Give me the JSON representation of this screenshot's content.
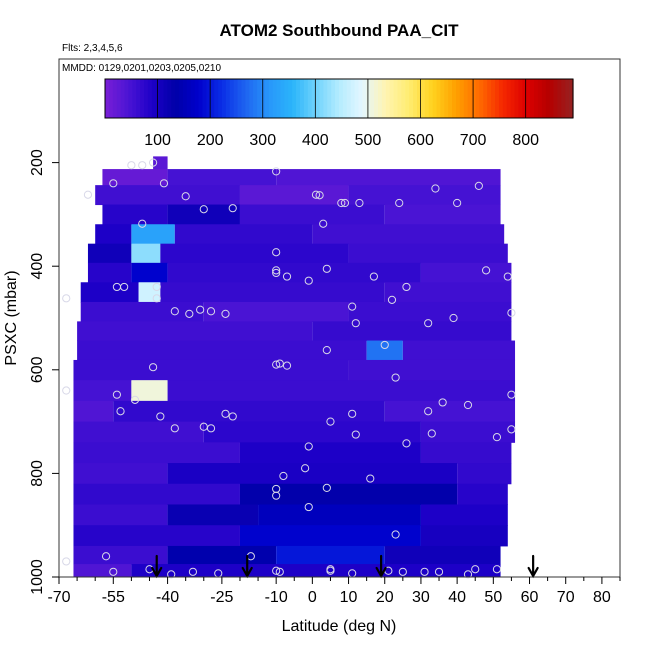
{
  "chart_data": {
    "type": "heatmap",
    "title": "ATOM2 Southbound PAA_CIT",
    "subtitle_flights": "Flts: 2,3,4,5,6",
    "subtitle_dates": "MMDD: 0129,0201,0203,0205,0210",
    "xlabel": "Latitude (deg N)",
    "ylabel": "PSXC (mbar)",
    "xlim": [
      -70,
      85
    ],
    "ylim": [
      1000,
      0
    ],
    "x_major_ticks": [
      -70,
      -55,
      -40,
      -25,
      -10,
      0,
      10,
      20,
      30,
      40,
      50,
      60,
      70,
      80
    ],
    "x_tick_labels": [
      "-70",
      "-55",
      "-40",
      "-25",
      "-10",
      "0",
      "10",
      "20",
      "30",
      "40",
      "50",
      "60",
      "70",
      "80"
    ],
    "x_minor_ticks": [
      -65,
      -60,
      -50,
      -45,
      -35,
      -30,
      -20,
      -15,
      -5,
      5,
      15,
      25,
      35,
      45,
      55,
      65,
      75,
      85
    ],
    "y_ticks": [
      200,
      400,
      600,
      800,
      1000
    ],
    "y_tick_labels": [
      "200",
      "400",
      "600",
      "800",
      "1000"
    ],
    "colorbar": {
      "min": 0,
      "max": 890,
      "ticks": [
        100,
        200,
        300,
        400,
        500,
        600,
        700,
        800
      ],
      "tick_labels": [
        "100",
        "200",
        "300",
        "400",
        "500",
        "600",
        "700",
        "800"
      ],
      "colors": [
        "#7a1fd6",
        "#4b14d4",
        "#1e00c8",
        "#0000a8",
        "#0000cc",
        "#0a2ee6",
        "#1e64f0",
        "#2896fa",
        "#2ab4fa",
        "#6fd2fc",
        "#b4ecfe",
        "#e4f6ff",
        "#fff4b0",
        "#ffec70",
        "#ffd21e",
        "#ffa000",
        "#ff6a00",
        "#f52800",
        "#dc0000",
        "#b40000",
        "#962222"
      ]
    },
    "arrows_latitude": [
      -43,
      -18,
      19,
      61
    ],
    "rows": [
      {
        "p": 200,
        "segments": [
          {
            "x0": -44,
            "x1": -40,
            "v": 30
          }
        ]
      },
      {
        "p": 225,
        "segments": [
          {
            "x0": -58,
            "x1": -40,
            "v": 20
          },
          {
            "x0": -40,
            "x1": -10,
            "v": 50
          },
          {
            "x0": -10,
            "x1": 52,
            "v": 40
          }
        ]
      },
      {
        "p": 262,
        "segments": [
          {
            "x0": -60,
            "x1": -20,
            "v": 55
          },
          {
            "x0": -20,
            "x1": 10,
            "v": 30
          },
          {
            "x0": 10,
            "x1": 52,
            "v": 50
          }
        ]
      },
      {
        "p": 300,
        "segments": [
          {
            "x0": -58,
            "x1": -40,
            "v": 80
          },
          {
            "x0": -40,
            "x1": -20,
            "v": 110
          },
          {
            "x0": -20,
            "x1": 20,
            "v": 60
          },
          {
            "x0": 20,
            "x1": 52,
            "v": 45
          }
        ]
      },
      {
        "p": 338,
        "segments": [
          {
            "x0": -60,
            "x1": -50,
            "v": 90
          },
          {
            "x0": -50,
            "x1": -38,
            "v": 330
          },
          {
            "x0": -38,
            "x1": 0,
            "v": 70
          },
          {
            "x0": 0,
            "x1": 53,
            "v": 55
          }
        ]
      },
      {
        "p": 375,
        "segments": [
          {
            "x0": -62,
            "x1": -50,
            "v": 110
          },
          {
            "x0": -50,
            "x1": -42,
            "v": 420
          },
          {
            "x0": -42,
            "x1": 10,
            "v": 75
          },
          {
            "x0": 10,
            "x1": 54,
            "v": 60
          }
        ]
      },
      {
        "p": 412,
        "segments": [
          {
            "x0": -62,
            "x1": -50,
            "v": 80
          },
          {
            "x0": -50,
            "x1": -40,
            "v": 180
          },
          {
            "x0": -40,
            "x1": 30,
            "v": 70
          },
          {
            "x0": 30,
            "x1": 55,
            "v": 50
          }
        ]
      },
      {
        "p": 450,
        "segments": [
          {
            "x0": -64,
            "x1": -48,
            "v": 90
          },
          {
            "x0": -48,
            "x1": -42,
            "v": 470
          },
          {
            "x0": -42,
            "x1": 20,
            "v": 65
          },
          {
            "x0": 20,
            "x1": 55,
            "v": 55
          }
        ]
      },
      {
        "p": 488,
        "segments": [
          {
            "x0": -64,
            "x1": -30,
            "v": 60
          },
          {
            "x0": -30,
            "x1": 10,
            "v": 45
          },
          {
            "x0": 10,
            "x1": 55,
            "v": 60
          }
        ]
      },
      {
        "p": 525,
        "segments": [
          {
            "x0": -65,
            "x1": 0,
            "v": 55
          },
          {
            "x0": 0,
            "x1": 55,
            "v": 65
          }
        ]
      },
      {
        "p": 562,
        "segments": [
          {
            "x0": -65,
            "x1": 15,
            "v": 60
          },
          {
            "x0": 15,
            "x1": 25,
            "v": 280
          },
          {
            "x0": 25,
            "x1": 56,
            "v": 55
          }
        ]
      },
      {
        "p": 600,
        "segments": [
          {
            "x0": -66,
            "x1": 10,
            "v": 60
          },
          {
            "x0": 10,
            "x1": 56,
            "v": 55
          }
        ]
      },
      {
        "p": 640,
        "segments": [
          {
            "x0": -66,
            "x1": -50,
            "v": 50
          },
          {
            "x0": -50,
            "x1": -40,
            "v": 510
          },
          {
            "x0": -40,
            "x1": 56,
            "v": 60
          }
        ]
      },
      {
        "p": 680,
        "segments": [
          {
            "x0": -66,
            "x1": -55,
            "v": 40
          },
          {
            "x0": -55,
            "x1": 20,
            "v": 70
          },
          {
            "x0": 20,
            "x1": 56,
            "v": 50
          }
        ]
      },
      {
        "p": 720,
        "segments": [
          {
            "x0": -66,
            "x1": -30,
            "v": 55
          },
          {
            "x0": -30,
            "x1": 30,
            "v": 75
          },
          {
            "x0": 30,
            "x1": 56,
            "v": 60
          }
        ]
      },
      {
        "p": 760,
        "segments": [
          {
            "x0": -66,
            "x1": -20,
            "v": 60
          },
          {
            "x0": -20,
            "x1": 30,
            "v": 90
          },
          {
            "x0": 30,
            "x1": 55,
            "v": 65
          }
        ]
      },
      {
        "p": 800,
        "segments": [
          {
            "x0": -66,
            "x1": -40,
            "v": 55
          },
          {
            "x0": -40,
            "x1": 40,
            "v": 95
          },
          {
            "x0": 40,
            "x1": 55,
            "v": 70
          }
        ]
      },
      {
        "p": 840,
        "segments": [
          {
            "x0": -66,
            "x1": -20,
            "v": 70
          },
          {
            "x0": -20,
            "x1": 40,
            "v": 130
          },
          {
            "x0": 40,
            "x1": 54,
            "v": 80
          }
        ]
      },
      {
        "p": 880,
        "segments": [
          {
            "x0": -66,
            "x1": -40,
            "v": 60
          },
          {
            "x0": -40,
            "x1": -15,
            "v": 120
          },
          {
            "x0": -15,
            "x1": 30,
            "v": 160
          },
          {
            "x0": 30,
            "x1": 54,
            "v": 90
          }
        ]
      },
      {
        "p": 920,
        "segments": [
          {
            "x0": -66,
            "x1": -20,
            "v": 80
          },
          {
            "x0": -20,
            "x1": 30,
            "v": 180
          },
          {
            "x0": 30,
            "x1": 54,
            "v": 100
          }
        ]
      },
      {
        "p": 960,
        "segments": [
          {
            "x0": -66,
            "x1": -40,
            "v": 60
          },
          {
            "x0": -40,
            "x1": -10,
            "v": 140
          },
          {
            "x0": -10,
            "x1": 20,
            "v": 200
          },
          {
            "x0": 20,
            "x1": 52,
            "v": 110
          }
        ]
      },
      {
        "p": 990,
        "segments": [
          {
            "x0": -66,
            "x1": -50,
            "v": 40
          },
          {
            "x0": -50,
            "x1": 52,
            "v": 90
          }
        ]
      }
    ],
    "points": [
      {
        "lat": -44,
        "p": 200
      },
      {
        "lat": -50,
        "p": 205
      },
      {
        "lat": -47,
        "p": 205
      },
      {
        "lat": -55,
        "p": 240
      },
      {
        "lat": -41,
        "p": 240
      },
      {
        "lat": -62,
        "p": 262
      },
      {
        "lat": -35,
        "p": 265
      },
      {
        "lat": -10,
        "p": 217
      },
      {
        "lat": 1,
        "p": 262
      },
      {
        "lat": 2,
        "p": 263
      },
      {
        "lat": 8,
        "p": 278
      },
      {
        "lat": 9,
        "p": 278
      },
      {
        "lat": 13,
        "p": 278
      },
      {
        "lat": 34,
        "p": 250
      },
      {
        "lat": 46,
        "p": 245
      },
      {
        "lat": -30,
        "p": 290
      },
      {
        "lat": -22,
        "p": 288
      },
      {
        "lat": 3,
        "p": 318
      },
      {
        "lat": 24,
        "p": 278
      },
      {
        "lat": 40,
        "p": 278
      },
      {
        "lat": -47,
        "p": 318
      },
      {
        "lat": -10,
        "p": 373
      },
      {
        "lat": -10,
        "p": 408
      },
      {
        "lat": -10,
        "p": 413
      },
      {
        "lat": -7,
        "p": 420
      },
      {
        "lat": 4,
        "p": 405
      },
      {
        "lat": -1,
        "p": 428
      },
      {
        "lat": 17,
        "p": 420
      },
      {
        "lat": 26,
        "p": 440
      },
      {
        "lat": 48,
        "p": 408
      },
      {
        "lat": 54,
        "p": 420
      },
      {
        "lat": -54,
        "p": 440
      },
      {
        "lat": -52,
        "p": 440
      },
      {
        "lat": -43,
        "p": 440
      },
      {
        "lat": -43,
        "p": 462
      },
      {
        "lat": -68,
        "p": 462
      },
      {
        "lat": 11,
        "p": 478
      },
      {
        "lat": 22,
        "p": 465
      },
      {
        "lat": 12,
        "p": 510
      },
      {
        "lat": 32,
        "p": 510
      },
      {
        "lat": 39,
        "p": 500
      },
      {
        "lat": 55,
        "p": 490
      },
      {
        "lat": -38,
        "p": 487
      },
      {
        "lat": -34,
        "p": 492
      },
      {
        "lat": -31,
        "p": 484
      },
      {
        "lat": -28,
        "p": 487
      },
      {
        "lat": -24,
        "p": 492
      },
      {
        "lat": 20,
        "p": 552
      },
      {
        "lat": 4,
        "p": 562
      },
      {
        "lat": -10,
        "p": 590
      },
      {
        "lat": -9,
        "p": 588
      },
      {
        "lat": -7,
        "p": 592
      },
      {
        "lat": -44,
        "p": 595
      },
      {
        "lat": 23,
        "p": 615
      },
      {
        "lat": -68,
        "p": 640
      },
      {
        "lat": -54,
        "p": 648
      },
      {
        "lat": -53,
        "p": 680
      },
      {
        "lat": -49,
        "p": 658
      },
      {
        "lat": -42,
        "p": 690
      },
      {
        "lat": -38,
        "p": 713
      },
      {
        "lat": -30,
        "p": 710
      },
      {
        "lat": -28,
        "p": 713
      },
      {
        "lat": -24,
        "p": 685
      },
      {
        "lat": -22,
        "p": 690
      },
      {
        "lat": 5,
        "p": 700
      },
      {
        "lat": 11,
        "p": 685
      },
      {
        "lat": 12,
        "p": 725
      },
      {
        "lat": 32,
        "p": 680
      },
      {
        "lat": 36,
        "p": 663
      },
      {
        "lat": 43,
        "p": 668
      },
      {
        "lat": 55,
        "p": 648
      },
      {
        "lat": 55,
        "p": 715
      },
      {
        "lat": 51,
        "p": 730
      },
      {
        "lat": 26,
        "p": 742
      },
      {
        "lat": 33,
        "p": 723
      },
      {
        "lat": -1,
        "p": 748
      },
      {
        "lat": -8,
        "p": 805
      },
      {
        "lat": -10,
        "p": 830
      },
      {
        "lat": -10,
        "p": 843
      },
      {
        "lat": -2,
        "p": 790
      },
      {
        "lat": 4,
        "p": 828
      },
      {
        "lat": 16,
        "p": 810
      },
      {
        "lat": -1,
        "p": 865
      },
      {
        "lat": 23,
        "p": 918
      },
      {
        "lat": -68,
        "p": 970
      },
      {
        "lat": -57,
        "p": 960
      },
      {
        "lat": -55,
        "p": 990
      },
      {
        "lat": -45,
        "p": 985
      },
      {
        "lat": -39,
        "p": 995
      },
      {
        "lat": -33,
        "p": 990
      },
      {
        "lat": -26,
        "p": 993
      },
      {
        "lat": -17,
        "p": 960
      },
      {
        "lat": -10,
        "p": 988
      },
      {
        "lat": -9,
        "p": 990
      },
      {
        "lat": 5,
        "p": 985
      },
      {
        "lat": 5,
        "p": 988
      },
      {
        "lat": 11,
        "p": 993
      },
      {
        "lat": 21,
        "p": 988
      },
      {
        "lat": 25,
        "p": 990
      },
      {
        "lat": 31,
        "p": 990
      },
      {
        "lat": 35,
        "p": 990
      },
      {
        "lat": 45,
        "p": 985
      },
      {
        "lat": 43,
        "p": 995
      },
      {
        "lat": 51,
        "p": 985
      }
    ]
  }
}
